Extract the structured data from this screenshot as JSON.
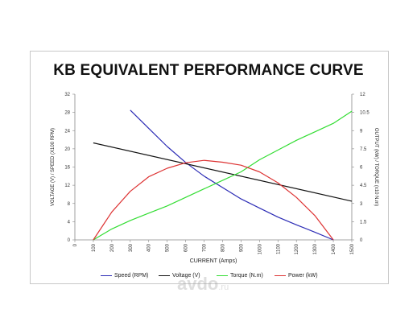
{
  "watermark": {
    "main": "avdo",
    "suffix": ".ru"
  },
  "chart_data": {
    "type": "line",
    "title": "KB EQUIVALENT PERFORMANCE CURVE",
    "xlabel": "CURRENT (Amps)",
    "ylabel_left": "VOLTAGE (V) / SPEED (X100 RPM)",
    "ylabel_right": "OUTPUT (kW) / TORQUE (x10 N.m)",
    "xlim": [
      0,
      1500
    ],
    "ylim_left": [
      0,
      32
    ],
    "ylim_right": [
      0,
      12
    ],
    "grid": false,
    "legend_position": "bottom",
    "x_ticks": [
      "0",
      "100",
      "200",
      "300",
      "400",
      "500",
      "600",
      "700",
      "800",
      "900",
      "1000",
      "1100",
      "1200",
      "1300",
      "1400",
      "1500"
    ],
    "y_ticks_left": [
      "0",
      "4",
      "8",
      "12",
      "16",
      "20",
      "24",
      "28",
      "32"
    ],
    "y_ticks_right": [
      "0",
      "1.5",
      "3",
      "4.5",
      "6",
      "7.5",
      "9",
      "10.5",
      "12"
    ],
    "series": [
      {
        "name": "Speed (RPM)",
        "axis": "left",
        "color": "#2b2bb5",
        "x": [
          300,
          400,
          500,
          600,
          700,
          800,
          900,
          1000,
          1100,
          1200,
          1300,
          1400
        ],
        "y": [
          28.5,
          24.5,
          20.5,
          17,
          14,
          11.5,
          9,
          7,
          5,
          3.3,
          1.7,
          0
        ]
      },
      {
        "name": "Voltage (V)",
        "axis": "left",
        "color": "#111111",
        "x": [
          100,
          1500
        ],
        "y": [
          21.3,
          8.5
        ]
      },
      {
        "name": "Torque (N.m)",
        "axis": "right",
        "color": "#33dd33",
        "x": [
          100,
          200,
          300,
          400,
          500,
          600,
          700,
          800,
          900,
          1000,
          1100,
          1200,
          1300,
          1400,
          1500
        ],
        "y": [
          0,
          0.9,
          1.6,
          2.2,
          2.8,
          3.5,
          4.2,
          4.9,
          5.6,
          6.6,
          7.4,
          8.2,
          8.9,
          9.6,
          10.6
        ]
      },
      {
        "name": "Power (kW)",
        "axis": "right",
        "color": "#dd3333",
        "x": [
          100,
          200,
          300,
          400,
          500,
          600,
          700,
          800,
          900,
          1000,
          1100,
          1200,
          1300,
          1400
        ],
        "y": [
          0,
          2.3,
          4.0,
          5.2,
          5.9,
          6.35,
          6.55,
          6.4,
          6.15,
          5.6,
          4.7,
          3.5,
          2.0,
          0
        ]
      }
    ]
  }
}
